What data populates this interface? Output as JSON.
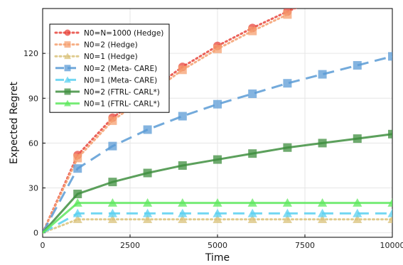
{
  "chart_data": {
    "type": "line",
    "xlabel": "Time",
    "ylabel": "Expected Regret",
    "xlim": [
      0,
      10000
    ],
    "ylim": [
      -3,
      150
    ],
    "xticks": [
      0,
      2500,
      5000,
      7500,
      10000
    ],
    "yticks": [
      0,
      30,
      60,
      90,
      120
    ],
    "xtick_labels": [
      "0",
      "2500",
      "5000",
      "7500",
      "10000"
    ],
    "ytick_labels": [
      "0",
      "30",
      "60",
      "90",
      "120"
    ],
    "grid": true,
    "legend_position": "top-left",
    "series": [
      {
        "name": "N0=N=1000 (Hedge)",
        "color": "#e8453c",
        "line": "dotted",
        "marker": "circle",
        "line_x": [
          0,
          1000,
          2000,
          3000,
          4000,
          5000,
          6000,
          7000,
          7300
        ],
        "line_y": [
          0,
          52,
          77,
          94,
          111,
          125,
          137,
          148,
          151
        ],
        "marker_x": [
          1000,
          2000,
          4000,
          5000,
          6000,
          7000
        ],
        "marker_y": [
          52,
          77,
          111,
          125,
          137,
          148
        ]
      },
      {
        "name": "N0=2 (Hedge)",
        "color": "#f5a070",
        "line": "dotted",
        "marker": "square",
        "line_x": [
          0,
          1000,
          2000,
          3000,
          4000,
          5000,
          6000,
          7000
        ],
        "line_y": [
          0,
          50,
          75,
          92,
          109,
          123,
          135,
          146
        ],
        "marker_x": [
          1000,
          2000,
          4000,
          5000,
          6000,
          7000
        ],
        "marker_y": [
          50,
          75,
          109,
          123,
          135,
          146
        ]
      },
      {
        "name": "N0=1 (Hedge)",
        "color": "#d9c27a",
        "line": "dotted",
        "marker": "triangle",
        "line_x": [
          0,
          1000,
          2000,
          3000,
          4000,
          5000,
          6000,
          7000,
          8000,
          9000,
          10000
        ],
        "line_y": [
          0,
          9,
          9,
          9,
          9,
          9,
          9,
          9,
          9,
          9,
          9
        ],
        "marker_x": [
          1000,
          2000,
          3000,
          4000,
          5000,
          6000,
          7000,
          8000,
          9000,
          10000
        ],
        "marker_y": [
          9,
          9,
          9,
          9,
          9,
          9,
          9,
          9,
          9,
          9
        ]
      },
      {
        "name": "N0=2 (Meta- CARE)",
        "color": "#5b9bd5",
        "line": "dashed",
        "marker": "square",
        "line_x": [
          0,
          1000,
          2000,
          3000,
          4000,
          5000,
          6000,
          7000,
          8000,
          9000,
          10000
        ],
        "line_y": [
          0,
          43,
          58,
          69,
          78,
          86,
          93,
          100,
          106,
          112,
          118
        ],
        "marker_x": [
          1000,
          2000,
          3000,
          4000,
          5000,
          6000,
          7000,
          8000,
          9000,
          10000
        ],
        "marker_y": [
          43,
          58,
          69,
          78,
          86,
          93,
          100,
          106,
          112,
          118
        ]
      },
      {
        "name": "N0=1 (Meta- CARE)",
        "color": "#5ad0f0",
        "line": "dashed",
        "marker": "triangle",
        "line_x": [
          0,
          1000,
          2000,
          3000,
          4000,
          5000,
          6000,
          7000,
          8000,
          9000,
          10000
        ],
        "line_y": [
          0,
          13,
          13,
          13,
          13,
          13,
          13,
          13,
          13,
          13,
          13
        ],
        "marker_x": [
          1000,
          2000,
          3000,
          4000,
          5000,
          6000,
          7000,
          8000,
          9000,
          10000
        ],
        "marker_y": [
          13,
          13,
          13,
          13,
          13,
          13,
          13,
          13,
          13,
          13
        ]
      },
      {
        "name": "N0=2 (FTRL- CARL*)",
        "color": "#3f8f3f",
        "line": "solid",
        "marker": "square",
        "line_x": [
          0,
          1000,
          2000,
          3000,
          4000,
          5000,
          6000,
          7000,
          8000,
          9000,
          10000
        ],
        "line_y": [
          0,
          26,
          34,
          40,
          45,
          49,
          53,
          57,
          60,
          63,
          66
        ],
        "marker_x": [
          1000,
          2000,
          3000,
          4000,
          5000,
          6000,
          7000,
          8000,
          9000,
          10000
        ],
        "marker_y": [
          26,
          34,
          40,
          45,
          49,
          53,
          57,
          60,
          63,
          66
        ]
      },
      {
        "name": "N0=1 (FTRL- CARL*)",
        "color": "#5ee85e",
        "line": "solid",
        "marker": "triangle",
        "line_x": [
          0,
          1000,
          2000,
          3000,
          4000,
          5000,
          6000,
          7000,
          8000,
          9000,
          10000
        ],
        "line_y": [
          0,
          20,
          20,
          20,
          20,
          20,
          20,
          20,
          20,
          20,
          20
        ],
        "marker_x": [
          1000,
          2000,
          3000,
          4000,
          5000,
          6000,
          7000,
          8000,
          9000,
          10000
        ],
        "marker_y": [
          20,
          20,
          20,
          20,
          20,
          20,
          20,
          20,
          20,
          20
        ]
      }
    ]
  }
}
